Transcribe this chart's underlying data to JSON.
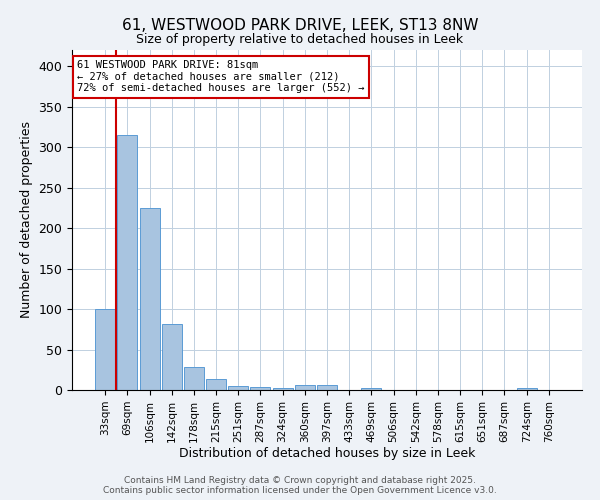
{
  "title": "61, WESTWOOD PARK DRIVE, LEEK, ST13 8NW",
  "subtitle": "Size of property relative to detached houses in Leek",
  "xlabel": "Distribution of detached houses by size in Leek",
  "ylabel": "Number of detached properties",
  "categories": [
    "33sqm",
    "69sqm",
    "106sqm",
    "142sqm",
    "178sqm",
    "215sqm",
    "251sqm",
    "287sqm",
    "324sqm",
    "360sqm",
    "397sqm",
    "433sqm",
    "469sqm",
    "506sqm",
    "542sqm",
    "578sqm",
    "615sqm",
    "651sqm",
    "687sqm",
    "724sqm",
    "760sqm"
  ],
  "values": [
    100,
    315,
    225,
    82,
    29,
    13,
    5,
    4,
    2,
    6,
    6,
    0,
    3,
    0,
    0,
    0,
    0,
    0,
    0,
    2,
    0
  ],
  "bar_color": "#a8c4e0",
  "bar_edge_color": "#5b9bd5",
  "vline_x_index": 1,
  "vline_color": "#cc0000",
  "annotation_text": "61 WESTWOOD PARK DRIVE: 81sqm\n← 27% of detached houses are smaller (212)\n72% of semi-detached houses are larger (552) →",
  "annotation_box_color": "#ffffff",
  "annotation_box_edge": "#cc0000",
  "footer_text": "Contains HM Land Registry data © Crown copyright and database right 2025.\nContains public sector information licensed under the Open Government Licence v3.0.",
  "ylim": [
    0,
    420
  ],
  "yticks": [
    0,
    50,
    100,
    150,
    200,
    250,
    300,
    350,
    400
  ],
  "bg_color": "#eef2f7",
  "plot_bg_color": "#ffffff",
  "grid_color": "#c0d0e0"
}
